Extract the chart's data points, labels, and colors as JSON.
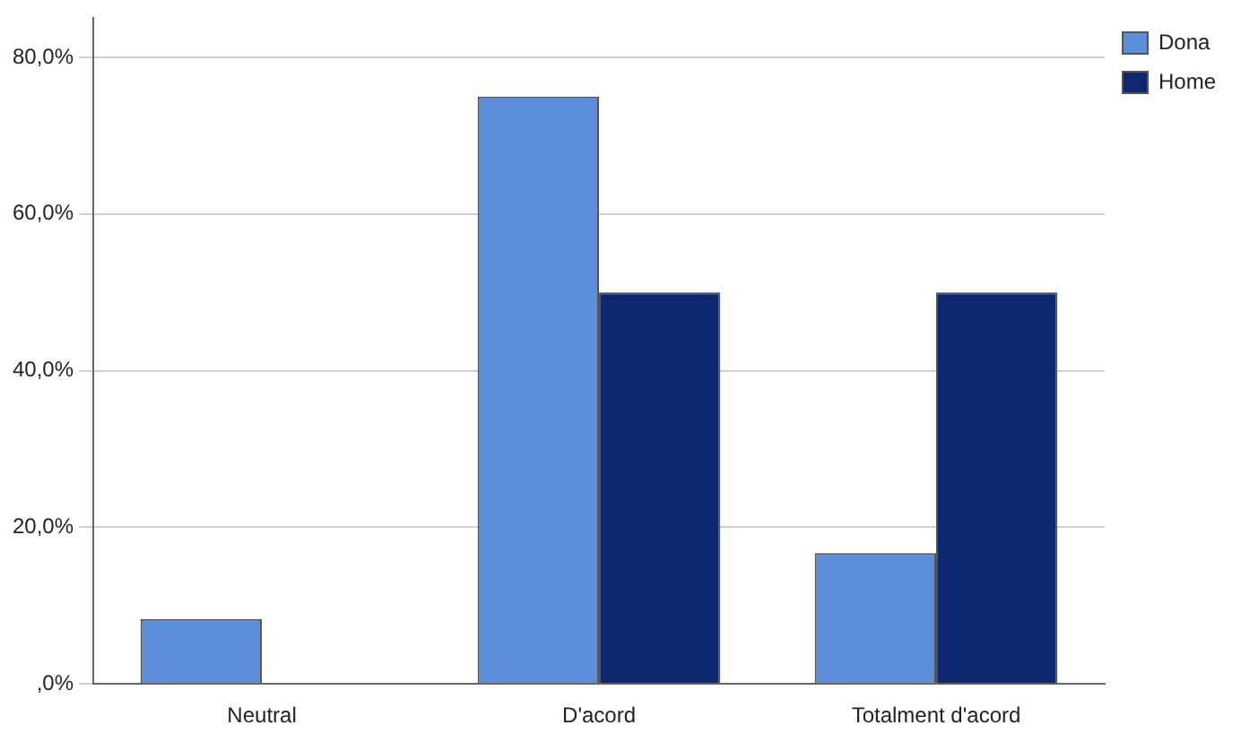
{
  "chart_data": {
    "type": "bar",
    "categories": [
      "Neutral",
      "D'acord",
      "Totalment d'acord"
    ],
    "series": [
      {
        "name": "Dona",
        "color": "#5b8fdc",
        "values": [
          8.3,
          75,
          16.7
        ]
      },
      {
        "name": "Home",
        "color": "#0d2670",
        "values": [
          0,
          50,
          50
        ]
      }
    ],
    "ylim": [
      0,
      85
    ],
    "yticks": [
      {
        "value": 0,
        "label": ",0%"
      },
      {
        "value": 20,
        "label": "20,0%"
      },
      {
        "value": 40,
        "label": "40,0%"
      },
      {
        "value": 60,
        "label": "60,0%"
      },
      {
        "value": 80,
        "label": "80,0%"
      }
    ],
    "grid": "y",
    "legend": "top right"
  }
}
